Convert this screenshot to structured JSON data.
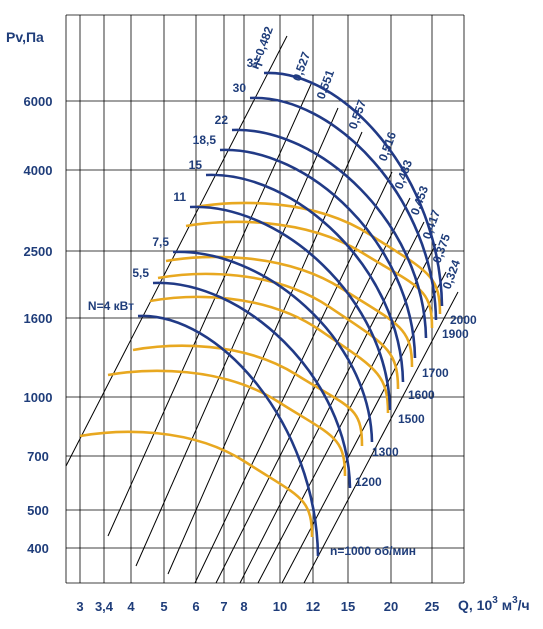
{
  "chart_data": {
    "type": "line",
    "xlabel": "Q, 10",
    "xlabel_sup1": "3",
    "xlabel_mid": " м",
    "xlabel_sup2": "3",
    "xlabel_end": "/ч",
    "ylabel": "Pv,Па",
    "x_scale": "log",
    "y_scale": "log",
    "xlim": [
      2.75,
      30
    ],
    "ylim": [
      300,
      9500
    ],
    "x_ticks": [
      3,
      3.4,
      4,
      5,
      6,
      7,
      8,
      10,
      12,
      15,
      20,
      25
    ],
    "x_tick_labels": [
      "3",
      "3,4",
      "4",
      "5",
      "6",
      "7",
      "8",
      "10",
      "12",
      "15",
      "20",
      "25"
    ],
    "y_ticks": [
      400,
      500,
      700,
      1000,
      1600,
      2500,
      4000,
      6000
    ],
    "y_tick_labels": [
      "400",
      "500",
      "700",
      "1000",
      "1600",
      "2500",
      "4000",
      "6000"
    ],
    "grid": true,
    "colors": {
      "speed": "#e8a820",
      "power": "#213a86",
      "efficiency": "#000000",
      "text": "#1f3d7a"
    },
    "speed_curves": [
      {
        "label": "n=1000 об/мин",
        "n": 1000
      },
      {
        "label": "1200",
        "n": 1200
      },
      {
        "label": "1300",
        "n": 1300
      },
      {
        "label": "1500",
        "n": 1500
      },
      {
        "label": "1600",
        "n": 1600
      },
      {
        "label": "1700",
        "n": 1700
      },
      {
        "label": "1900",
        "n": 1900
      },
      {
        "label": "2000",
        "n": 2000
      }
    ],
    "power_curves": [
      {
        "label": "N=4 кВт"
      },
      {
        "label": "5,5"
      },
      {
        "label": "7,5"
      },
      {
        "label": "11"
      },
      {
        "label": "15"
      },
      {
        "label": "18,5"
      },
      {
        "label": "22"
      },
      {
        "label": "30"
      },
      {
        "label": "37"
      }
    ],
    "efficiency_lines": [
      {
        "label": "η=0,482"
      },
      {
        "label": "0,527"
      },
      {
        "label": "0,551"
      },
      {
        "label": "0,557"
      },
      {
        "label": "0,516"
      },
      {
        "label": "0,483"
      },
      {
        "label": "0,453"
      },
      {
        "label": "0,417"
      },
      {
        "label": "0,375"
      },
      {
        "label": "0,324"
      }
    ]
  }
}
